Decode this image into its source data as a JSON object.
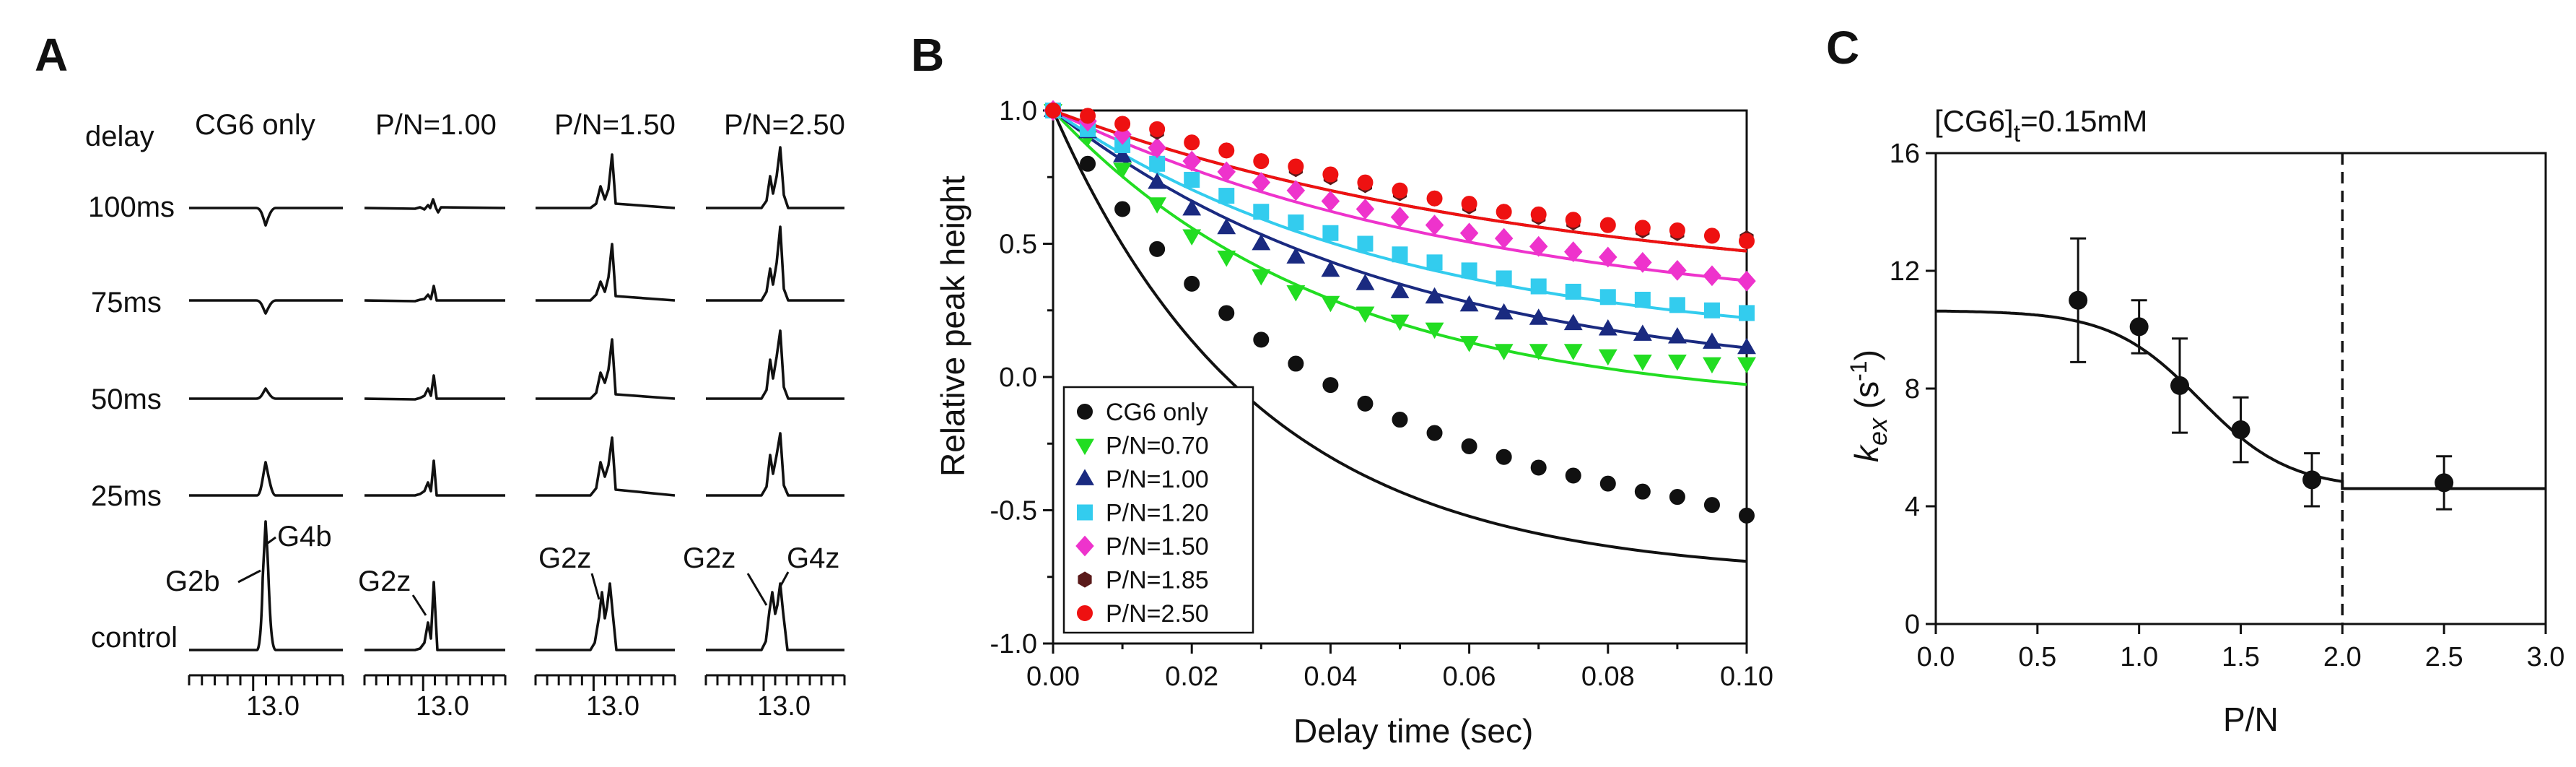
{
  "panel_labels": [
    "A",
    "B",
    "C"
  ],
  "panel_a": {
    "row_header": "delay",
    "columns": [
      "CG6 only",
      "P/N=1.00",
      "P/N=1.50",
      "P/N=2.50"
    ],
    "rows": [
      "100ms",
      "75ms",
      "50ms",
      "25ms",
      "control"
    ],
    "axis_tick": "13.0",
    "peak_labels": [
      "G2b",
      "G4b",
      "G2z",
      "G2z",
      "G2z",
      "G4z"
    ],
    "peak_heights": {
      "CG6 only": {
        "100ms": [
          0,
          -0.12
        ],
        "75ms": [
          0,
          -0.1
        ],
        "50ms": [
          0,
          0.07
        ],
        "25ms": [
          0,
          0.25
        ],
        "control": [
          0,
          1.0
        ]
      },
      "P/N=1.00": {
        "100ms": [
          0.05,
          0.12
        ],
        "75ms": [
          0.07,
          0.18
        ],
        "50ms": [
          0.1,
          0.24
        ],
        "25ms": [
          0.13,
          0.32
        ],
        "control": [
          0.22,
          0.6
        ]
      },
      "P/N=1.50": {
        "100ms": [
          0.25,
          0.4
        ],
        "75ms": [
          0.26,
          0.5
        ],
        "50ms": [
          0.3,
          0.5
        ],
        "25ms": [
          0.34,
          0.55
        ],
        "control": [
          0.45,
          0.52
        ]
      },
      "P/N=2.50": {
        "100ms": [
          0.38,
          0.55
        ],
        "75ms": [
          0.36,
          0.6
        ],
        "50ms": [
          0.44,
          0.6
        ],
        "25ms": [
          0.44,
          0.57
        ],
        "control": [
          0.52,
          0.6
        ]
      }
    }
  },
  "chart_data": [
    {
      "type": "scatter",
      "title": "",
      "xlabel": "Delay time (sec)",
      "ylabel": "Relative peak height",
      "xlim": [
        0.0,
        0.1
      ],
      "ylim": [
        -1.0,
        1.0
      ],
      "xticks": [
        "0.00",
        "0.02",
        "0.04",
        "0.06",
        "0.08",
        "0.10"
      ],
      "yticks": [
        "-1.0",
        "-0.5",
        "0.0",
        "0.5",
        "1.0"
      ],
      "legend_position": "bottom-left",
      "x": [
        0.0,
        0.005,
        0.01,
        0.015,
        0.02,
        0.025,
        0.03,
        0.035,
        0.04,
        0.045,
        0.05,
        0.055,
        0.06,
        0.065,
        0.07,
        0.075,
        0.08,
        0.085,
        0.09,
        0.095,
        0.1
      ],
      "series": [
        {
          "name": "CG6 only",
          "color": "#111111",
          "marker": "circle",
          "values": [
            1.0,
            0.8,
            0.63,
            0.48,
            0.35,
            0.24,
            0.14,
            0.05,
            -0.03,
            -0.1,
            -0.16,
            -0.21,
            -0.26,
            -0.3,
            -0.34,
            -0.37,
            -0.4,
            -0.43,
            -0.45,
            -0.48,
            -0.52
          ],
          "fit": [
            1.0,
            -0.75,
            34
          ]
        },
        {
          "name": "P/N=0.70",
          "color": "#22dd22",
          "marker": "triangle-down",
          "values": [
            1.0,
            0.9,
            0.78,
            0.65,
            0.53,
            0.45,
            0.38,
            0.32,
            0.28,
            0.24,
            0.21,
            0.18,
            0.13,
            0.1,
            0.1,
            0.1,
            0.08,
            0.06,
            0.06,
            0.05,
            0.05
          ],
          "fit": [
            1.0,
            -0.12,
            25
          ]
        },
        {
          "name": "P/N=1.00",
          "color": "#1a2a80",
          "marker": "triangle-up",
          "values": [
            1.0,
            0.92,
            0.83,
            0.73,
            0.63,
            0.56,
            0.5,
            0.45,
            0.4,
            0.35,
            0.32,
            0.3,
            0.27,
            0.24,
            0.22,
            0.2,
            0.18,
            0.16,
            0.15,
            0.13,
            0.11
          ],
          "fit": [
            1.0,
            -0.03,
            20
          ]
        },
        {
          "name": "P/N=1.20",
          "color": "#33ccee",
          "marker": "square",
          "values": [
            1.0,
            0.93,
            0.87,
            0.8,
            0.74,
            0.68,
            0.62,
            0.58,
            0.54,
            0.5,
            0.46,
            0.43,
            0.4,
            0.37,
            0.34,
            0.32,
            0.3,
            0.29,
            0.27,
            0.25,
            0.24
          ],
          "fit": [
            1.0,
            0.1,
            20
          ]
        },
        {
          "name": "P/N=1.50",
          "color": "#ee33cc",
          "marker": "diamond",
          "values": [
            1.0,
            0.96,
            0.91,
            0.86,
            0.81,
            0.77,
            0.73,
            0.7,
            0.66,
            0.63,
            0.6,
            0.57,
            0.54,
            0.52,
            0.49,
            0.47,
            0.45,
            0.43,
            0.4,
            0.38,
            0.36
          ],
          "fit": [
            1.0,
            0.2,
            16
          ]
        },
        {
          "name": "P/N=1.85",
          "color": "#5a1a1a",
          "marker": "hexagon",
          "values": [
            1.0,
            0.98,
            0.95,
            0.92,
            0.88,
            0.85,
            0.81,
            0.78,
            0.75,
            0.72,
            0.69,
            0.67,
            0.64,
            0.62,
            0.6,
            0.58,
            0.57,
            0.55,
            0.54,
            0.53,
            0.52
          ],
          "fit": [
            1.0,
            0.3,
            14
          ]
        },
        {
          "name": "P/N=2.50",
          "color": "#ee1111",
          "marker": "circle",
          "values": [
            1.0,
            0.98,
            0.95,
            0.93,
            0.88,
            0.85,
            0.81,
            0.79,
            0.76,
            0.73,
            0.7,
            0.67,
            0.65,
            0.62,
            0.61,
            0.59,
            0.57,
            0.56,
            0.55,
            0.53,
            0.51
          ],
          "fit": [
            1.0,
            0.3,
            14
          ]
        }
      ]
    },
    {
      "type": "scatter",
      "title_main": "[CG6]",
      "title_sub": "t",
      "title_rest": "=0.15mM",
      "xlabel": "P/N",
      "ylabel_main": "k",
      "ylabel_sub": "ex",
      "ylabel_unit_open": " (s",
      "ylabel_unit_exp": "-1",
      "ylabel_unit_close": ")",
      "xlim": [
        0.0,
        3.0
      ],
      "ylim": [
        0,
        16
      ],
      "xticks": [
        "0.0",
        "0.5",
        "1.0",
        "1.5",
        "2.0",
        "2.5",
        "3.0"
      ],
      "yticks": [
        "0",
        "4",
        "8",
        "12",
        "16"
      ],
      "vline_x": 2.0,
      "points": [
        {
          "x": 0.7,
          "y": 11.0,
          "err": 2.1
        },
        {
          "x": 1.0,
          "y": 10.1,
          "err": 0.9
        },
        {
          "x": 1.2,
          "y": 8.1,
          "err": 1.6
        },
        {
          "x": 1.5,
          "y": 6.6,
          "err": 1.1
        },
        {
          "x": 1.85,
          "y": 4.9,
          "err": 0.9
        },
        {
          "x": 2.5,
          "y": 4.8,
          "err": 0.9
        }
      ],
      "fit": {
        "plateau_high": 10.65,
        "plateau_low": 4.6,
        "midpoint": 1.3,
        "width": 0.22,
        "break_x": 2.0
      }
    }
  ]
}
